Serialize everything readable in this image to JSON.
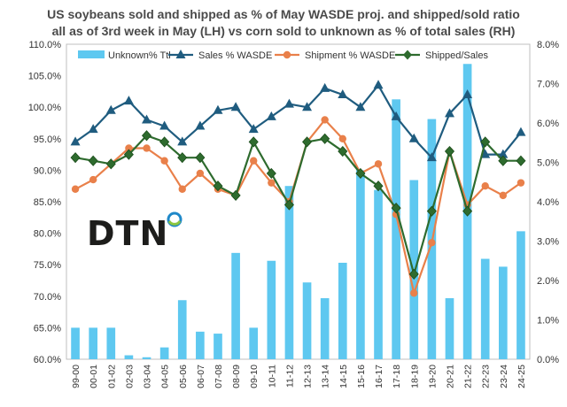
{
  "chart_data": {
    "type": "bar+line",
    "title_line_1": "US soybeans sold and shipped as % of May WASDE proj. and shipped/sold ratio",
    "title_line_2": "all as of 3rd week in May (LH) vs corn sold to unknown as % of total sales (RH)",
    "categories": [
      "99-00",
      "00-01",
      "01-02",
      "02-03",
      "03-04",
      "04-05",
      "05-06",
      "06-07",
      "07-08",
      "08-09",
      "09-10",
      "10-11",
      "11-12",
      "12-13",
      "13-14",
      "14-15",
      "15-16",
      "16-17",
      "17-18",
      "18-19",
      "19-20",
      "20-21",
      "21-22",
      "22-23",
      "23-24",
      "24-25"
    ],
    "left_axis": {
      "min": 60,
      "max": 110,
      "step": 5,
      "tick_labels": [
        "60.0%",
        "65.0%",
        "70.0%",
        "75.0%",
        "80.0%",
        "85.0%",
        "90.0%",
        "95.0%",
        "100.0%",
        "105.0%",
        "110.0%"
      ]
    },
    "right_axis": {
      "min": 0,
      "max": 8,
      "step": 1,
      "tick_labels": [
        "0.0%",
        "1.0%",
        "2.0%",
        "3.0%",
        "4.0%",
        "5.0%",
        "6.0%",
        "7.0%",
        "8.0%"
      ]
    },
    "series": [
      {
        "name": "Unknown% Ttl",
        "kind": "bar",
        "axis": "right",
        "color": "#5ec8f0",
        "values": [
          0.8,
          0.8,
          0.8,
          0.1,
          0.05,
          0.3,
          1.5,
          0.7,
          0.65,
          2.7,
          0.8,
          2.5,
          4.4,
          1.95,
          1.55,
          2.45,
          4.8,
          4.3,
          6.6,
          4.55,
          6.1,
          1.55,
          7.5,
          2.55,
          2.35,
          3.25
        ]
      },
      {
        "name": "Sales % WASDE",
        "kind": "line",
        "axis": "left",
        "color": "#1f5c7f",
        "marker": "triangle",
        "values": [
          94.5,
          96.5,
          99.5,
          101.0,
          98.0,
          97.0,
          94.5,
          97.0,
          99.5,
          100.0,
          96.5,
          98.5,
          100.5,
          100.0,
          103.0,
          102.0,
          100.0,
          103.5,
          98.5,
          95.0,
          92.0,
          99.0,
          102.0,
          92.5,
          92.5,
          96.0
        ]
      },
      {
        "name": "Shipment % WASDE",
        "kind": "line",
        "axis": "left",
        "color": "#e9804a",
        "marker": "circle",
        "values": [
          87.0,
          88.5,
          91.0,
          93.5,
          93.5,
          91.5,
          87.0,
          89.5,
          87.0,
          86.0,
          91.5,
          88.0,
          85.0,
          94.5,
          98.0,
          95.0,
          89.5,
          91.0,
          83.0,
          70.5,
          78.5,
          93.0,
          84.5,
          87.5,
          86.0,
          88.0
        ]
      },
      {
        "name": "Shipped/Sales",
        "kind": "line",
        "axis": "left",
        "color": "#2e6b2e",
        "marker": "diamond",
        "values": [
          92.0,
          91.5,
          91.0,
          92.5,
          95.5,
          94.5,
          92.0,
          92.0,
          87.5,
          86.0,
          94.5,
          89.5,
          84.5,
          94.5,
          95.0,
          93.0,
          89.5,
          87.5,
          84.0,
          73.5,
          83.5,
          93.0,
          83.5,
          94.5,
          91.5,
          91.5
        ]
      }
    ],
    "legend": [
      "Unknown% Ttl",
      "Sales % WASDE",
      "Shipment % WASDE",
      "Shipped/Sales"
    ],
    "legend_position": "top"
  },
  "logo": {
    "text": "DTN",
    "dot_colors": [
      "#1e88c9",
      "#8cc63f"
    ]
  }
}
